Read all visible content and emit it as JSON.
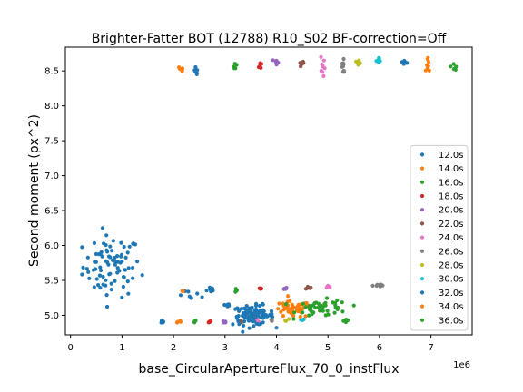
{
  "chart_data": {
    "type": "scatter",
    "title": "Brighter-Fatter BOT (12788) R10_S02 BF-correction=Off",
    "xlabel": "base_CircularApertureFlux_70_0_instFlux",
    "ylabel": "Second moment (px^2)",
    "x_multiplier_label": "1e6",
    "xlim": [
      -0.1,
      7.8
    ],
    "ylim": [
      4.72,
      8.84
    ],
    "x_ticks": [
      0,
      1,
      2,
      3,
      4,
      5,
      6,
      7
    ],
    "x_tick_labels": [
      "0",
      "1",
      "2",
      "3",
      "4",
      "5",
      "6",
      "7"
    ],
    "y_ticks": [
      5.0,
      5.5,
      6.0,
      6.5,
      7.0,
      7.5,
      8.0,
      8.5
    ],
    "y_tick_labels": [
      "5.0",
      "5.5",
      "6.0",
      "6.5",
      "7.0",
      "7.5",
      "8.0",
      "8.5"
    ],
    "grid": false,
    "legend_position": "lower-right",
    "series": [
      {
        "name": "12.0s",
        "color": "#1f77b4",
        "clusters": [
          {
            "x": 0.8,
            "y": 5.7,
            "sx": 0.28,
            "sy": 0.22,
            "n": 85
          },
          {
            "x": 2.43,
            "y": 8.47,
            "sx": 0.02,
            "sy": 0.05,
            "n": 8
          },
          {
            "x": 2.4,
            "y": 5.28,
            "sx": 0.15,
            "sy": 0.03,
            "n": 7
          },
          {
            "x": 2.7,
            "y": 5.37,
            "sx": 0.05,
            "sy": 0.02,
            "n": 6
          },
          {
            "x": 1.8,
            "y": 4.91,
            "sx": 0.02,
            "sy": 0.01,
            "n": 6
          }
        ]
      },
      {
        "name": "14.0s",
        "color": "#ff7f0e",
        "clusters": [
          {
            "x": 2.1,
            "y": 4.91,
            "sx": 0.02,
            "sy": 0.01,
            "n": 5
          },
          {
            "x": 2.15,
            "y": 5.35,
            "sx": 0.03,
            "sy": 0.01,
            "n": 3
          },
          {
            "x": 2.15,
            "y": 8.52,
            "sx": 0.02,
            "sy": 0.03,
            "n": 6
          }
        ]
      },
      {
        "name": "16.0s",
        "color": "#2ca02c",
        "clusters": [
          {
            "x": 2.4,
            "y": 4.91,
            "sx": 0.02,
            "sy": 0.01,
            "n": 5
          },
          {
            "x": 3.2,
            "y": 5.37,
            "sx": 0.03,
            "sy": 0.02,
            "n": 5
          },
          {
            "x": 3.2,
            "y": 8.57,
            "sx": 0.02,
            "sy": 0.03,
            "n": 7
          }
        ]
      },
      {
        "name": "18.0s",
        "color": "#d62728",
        "clusters": [
          {
            "x": 2.7,
            "y": 4.91,
            "sx": 0.02,
            "sy": 0.01,
            "n": 5
          },
          {
            "x": 3.7,
            "y": 5.38,
            "sx": 0.03,
            "sy": 0.01,
            "n": 5
          },
          {
            "x": 3.7,
            "y": 8.58,
            "sx": 0.02,
            "sy": 0.03,
            "n": 7
          }
        ]
      },
      {
        "name": "20.0s",
        "color": "#9467bd",
        "clusters": [
          {
            "x": 3.0,
            "y": 4.91,
            "sx": 0.02,
            "sy": 0.01,
            "n": 5
          },
          {
            "x": 4.15,
            "y": 5.38,
            "sx": 0.03,
            "sy": 0.01,
            "n": 5
          },
          {
            "x": 4.0,
            "y": 8.62,
            "sx": 0.02,
            "sy": 0.03,
            "n": 7
          }
        ]
      },
      {
        "name": "22.0s",
        "color": "#8c564b",
        "clusters": [
          {
            "x": 3.3,
            "y": 4.92,
            "sx": 0.02,
            "sy": 0.01,
            "n": 5
          },
          {
            "x": 4.6,
            "y": 5.4,
            "sx": 0.03,
            "sy": 0.01,
            "n": 5
          },
          {
            "x": 4.5,
            "y": 8.61,
            "sx": 0.03,
            "sy": 0.02,
            "n": 7
          }
        ]
      },
      {
        "name": "24.0s",
        "color": "#e377c2",
        "clusters": [
          {
            "x": 3.6,
            "y": 4.93,
            "sx": 0.02,
            "sy": 0.01,
            "n": 5
          },
          {
            "x": 5.0,
            "y": 5.4,
            "sx": 0.03,
            "sy": 0.01,
            "n": 5
          },
          {
            "x": 4.9,
            "y": 8.58,
            "sx": 0.02,
            "sy": 0.1,
            "n": 9
          }
        ]
      },
      {
        "name": "26.0s",
        "color": "#7f7f7f",
        "clusters": [
          {
            "x": 3.9,
            "y": 4.93,
            "sx": 0.02,
            "sy": 0.01,
            "n": 5
          },
          {
            "x": 5.95,
            "y": 5.43,
            "sx": 0.04,
            "sy": 0.01,
            "n": 8
          },
          {
            "x": 5.3,
            "y": 8.55,
            "sx": 0.03,
            "sy": 0.07,
            "n": 10
          }
        ]
      },
      {
        "name": "28.0s",
        "color": "#bcbd22",
        "clusters": [
          {
            "x": 4.2,
            "y": 4.93,
            "sx": 0.02,
            "sy": 0.01,
            "n": 5
          },
          {
            "x": 5.6,
            "y": 8.63,
            "sx": 0.02,
            "sy": 0.02,
            "n": 6
          }
        ]
      },
      {
        "name": "30.0s",
        "color": "#17becf",
        "clusters": [
          {
            "x": 4.5,
            "y": 4.94,
            "sx": 0.02,
            "sy": 0.01,
            "n": 5
          },
          {
            "x": 6.0,
            "y": 8.65,
            "sx": 0.03,
            "sy": 0.02,
            "n": 6
          }
        ]
      },
      {
        "name": "32.0s",
        "color": "#1f77b4",
        "clusters": [
          {
            "x": 3.55,
            "y": 5.0,
            "sx": 0.2,
            "sy": 0.07,
            "n": 95
          },
          {
            "x": 3.05,
            "y": 5.15,
            "sx": 0.03,
            "sy": 0.02,
            "n": 6
          },
          {
            "x": 6.5,
            "y": 8.63,
            "sx": 0.03,
            "sy": 0.03,
            "n": 6
          }
        ]
      },
      {
        "name": "34.0s",
        "color": "#ff7f0e",
        "clusters": [
          {
            "x": 4.3,
            "y": 5.08,
            "sx": 0.18,
            "sy": 0.06,
            "n": 50
          },
          {
            "x": 6.95,
            "y": 8.56,
            "sx": 0.02,
            "sy": 0.06,
            "n": 8
          }
        ]
      },
      {
        "name": "36.0s",
        "color": "#2ca02c",
        "clusters": [
          {
            "x": 4.9,
            "y": 5.1,
            "sx": 0.25,
            "sy": 0.06,
            "n": 50
          },
          {
            "x": 5.35,
            "y": 4.93,
            "sx": 0.05,
            "sy": 0.02,
            "n": 5
          },
          {
            "x": 7.45,
            "y": 8.57,
            "sx": 0.03,
            "sy": 0.03,
            "n": 6
          }
        ]
      }
    ]
  }
}
